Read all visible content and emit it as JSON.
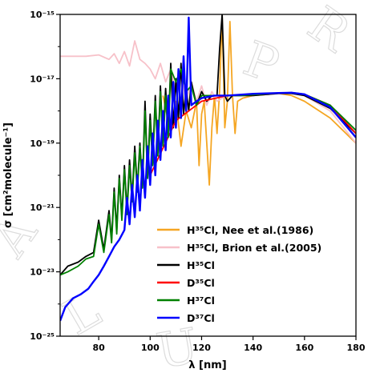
{
  "chart_data": {
    "type": "line",
    "title": "",
    "xlabel": "λ [nm]",
    "ylabel": "σ [cm²molecule⁻¹]",
    "xlim": [
      65,
      180
    ],
    "ylim": [
      1e-25,
      1e-15
    ],
    "yscale": "log",
    "grid": false,
    "legend_position": "lower-right",
    "x_ticks": [
      80,
      100,
      120,
      140,
      160,
      180
    ],
    "y_ticks": [
      {
        "value": 1e-25,
        "label": "10⁻²⁵"
      },
      {
        "value": 1e-23,
        "label": "10⁻²³"
      },
      {
        "value": 1e-21,
        "label": "10⁻²¹"
      },
      {
        "value": 1e-19,
        "label": "10⁻¹⁹"
      },
      {
        "value": 1e-17,
        "label": "10⁻¹⁷"
      },
      {
        "value": 1e-15,
        "label": "10⁻¹⁵"
      }
    ],
    "series": [
      {
        "name": "H³⁵Cl, Nee et al.(1986)",
        "color": "#f5a623",
        "x": [
          105,
          108,
          110,
          112,
          114,
          116,
          118,
          119,
          120,
          121,
          122,
          123,
          124,
          125,
          126,
          127,
          128,
          129,
          130,
          131,
          132,
          133,
          134,
          136,
          140,
          150,
          155,
          160,
          170,
          180
        ],
        "y": [
          3e-18,
          2e-19,
          2e-18,
          8e-20,
          1e-18,
          3e-19,
          2e-18,
          2e-20,
          8e-19,
          2e-18,
          1e-19,
          5e-21,
          3e-19,
          3e-18,
          2e-19,
          4e-18,
          9e-16,
          3e-19,
          2e-18,
          6e-16,
          3e-18,
          2e-19,
          2e-18,
          2.5e-18,
          3e-18,
          3.5e-18,
          3e-18,
          2e-18,
          6e-19,
          1e-19
        ]
      },
      {
        "name": "H³⁵Cl, Brion et al.(2005)",
        "color": "#f7c1c9",
        "x": [
          65,
          70,
          75,
          80,
          84,
          86,
          88,
          90,
          92,
          94,
          96,
          98,
          100,
          102,
          104,
          106,
          108,
          110,
          112,
          114,
          116,
          118,
          120,
          122,
          124,
          126,
          128,
          130,
          135,
          140,
          150,
          155,
          160,
          170,
          180
        ],
        "y": [
          5e-17,
          5e-17,
          5e-17,
          5.5e-17,
          4e-17,
          6e-17,
          3e-17,
          7e-17,
          2.5e-17,
          1.5e-16,
          4e-17,
          3e-17,
          2e-17,
          1e-17,
          3e-17,
          8e-18,
          2e-17,
          4e-18,
          1.5e-17,
          2e-18,
          8e-18,
          2e-18,
          6e-18,
          1.5e-18,
          4e-18,
          2e-18,
          2.5e-18,
          3e-18,
          3e-18,
          3e-18,
          3.5e-18,
          3.5e-18,
          3e-18,
          1e-18,
          1e-19
        ]
      },
      {
        "name": "H³⁵Cl",
        "color": "#000000",
        "x": [
          65,
          68,
          72,
          75,
          78,
          80,
          82,
          84,
          85,
          86,
          87,
          88,
          89,
          90,
          91,
          92,
          93,
          94,
          95,
          96,
          97,
          98,
          99,
          100,
          101,
          102,
          103,
          104,
          105,
          106,
          107,
          108,
          109,
          110,
          111,
          112,
          113,
          114,
          115,
          116,
          118,
          120,
          122,
          124,
          126,
          127,
          128,
          129,
          130,
          132,
          135,
          140,
          150,
          155,
          160,
          170,
          180
        ],
        "y": [
          8e-24,
          1.5e-23,
          2e-23,
          3e-23,
          4e-23,
          4e-22,
          5e-23,
          8e-22,
          1e-22,
          4e-21,
          2e-22,
          1e-20,
          5e-22,
          2e-20,
          8e-22,
          3e-20,
          2e-21,
          8e-20,
          4e-21,
          1e-19,
          5e-21,
          2e-18,
          1e-20,
          8e-19,
          3e-20,
          3e-18,
          5e-20,
          6e-18,
          1e-19,
          5e-18,
          2e-19,
          3e-17,
          3e-19,
          1e-17,
          6e-19,
          3e-17,
          8e-19,
          5e-18,
          1e-18,
          8e-18,
          1.5e-18,
          4e-18,
          2e-18,
          3e-18,
          3e-18,
          8e-17,
          1e-15,
          3e-18,
          2e-18,
          3e-18,
          3e-18,
          3e-18,
          3.5e-18,
          3.5e-18,
          3e-18,
          1.2e-18,
          2e-19
        ]
      },
      {
        "name": "D³⁵Cl",
        "color": "#ff0000",
        "x": [
          100,
          110,
          120,
          130,
          140,
          150,
          155,
          160,
          170,
          180
        ],
        "y": [
          1e-20,
          5e-19,
          2e-18,
          3e-18,
          3.2e-18,
          3.6e-18,
          3.7e-18,
          3.3e-18,
          1.5e-18,
          2e-19
        ]
      },
      {
        "name": "H³⁷Cl",
        "color": "#008000",
        "x": [
          65,
          68,
          72,
          75,
          78,
          80,
          82,
          84,
          85,
          86,
          87,
          88,
          89,
          90,
          91,
          92,
          93,
          94,
          95,
          96,
          97,
          98,
          99,
          100,
          101,
          102,
          103,
          104,
          105,
          106,
          107,
          108,
          110,
          112,
          114,
          116,
          118,
          120,
          125,
          130,
          135,
          140,
          150,
          155,
          160,
          170,
          180
        ],
        "y": [
          8e-24,
          1e-23,
          1.5e-23,
          2.5e-23,
          3e-23,
          3e-22,
          4e-23,
          6e-22,
          8e-23,
          3e-21,
          1.5e-22,
          8e-21,
          4e-22,
          1.5e-20,
          6e-22,
          2e-20,
          1.5e-21,
          5e-20,
          3e-21,
          8e-20,
          4e-21,
          1e-18,
          8e-21,
          5e-19,
          2e-20,
          2e-18,
          4e-20,
          4e-18,
          8e-20,
          3e-18,
          1.5e-19,
          2e-17,
          8e-18,
          2e-17,
          4e-18,
          6e-18,
          1.5e-18,
          3e-18,
          3e-18,
          3e-18,
          3e-18,
          3.2e-18,
          3.6e-18,
          3.7e-18,
          3.3e-18,
          1.5e-18,
          2.5e-19
        ]
      },
      {
        "name": "D³⁷Cl",
        "color": "#0000ff",
        "x": [
          65,
          67,
          70,
          73,
          76,
          78,
          80,
          82,
          84,
          86,
          88,
          90,
          91,
          92,
          93,
          94,
          95,
          96,
          97,
          98,
          99,
          100,
          101,
          102,
          103,
          104,
          105,
          106,
          107,
          108,
          109,
          110,
          111,
          112,
          113,
          114,
          115,
          116,
          118,
          120,
          125,
          130,
          135,
          140,
          150,
          155,
          160,
          170,
          180
        ],
        "y": [
          3e-25,
          8e-25,
          1.5e-24,
          2e-24,
          3e-24,
          5e-24,
          8e-24,
          1.5e-23,
          3e-23,
          6e-23,
          1e-22,
          2e-22,
          2e-21,
          3e-22,
          5e-21,
          5e-22,
          1e-20,
          8e-22,
          3e-20,
          2e-21,
          8e-20,
          5e-21,
          2e-19,
          1e-20,
          5e-19,
          3e-20,
          1e-18,
          6e-20,
          3e-18,
          1.5e-19,
          8e-18,
          3e-19,
          2e-17,
          6e-19,
          5e-17,
          1e-18,
          8e-16,
          1.5e-18,
          2e-18,
          2.5e-18,
          3e-18,
          3e-18,
          3.2e-18,
          3.4e-18,
          3.6e-18,
          3.7e-18,
          3.3e-18,
          1.3e-18,
          1.5e-19
        ]
      }
    ]
  }
}
